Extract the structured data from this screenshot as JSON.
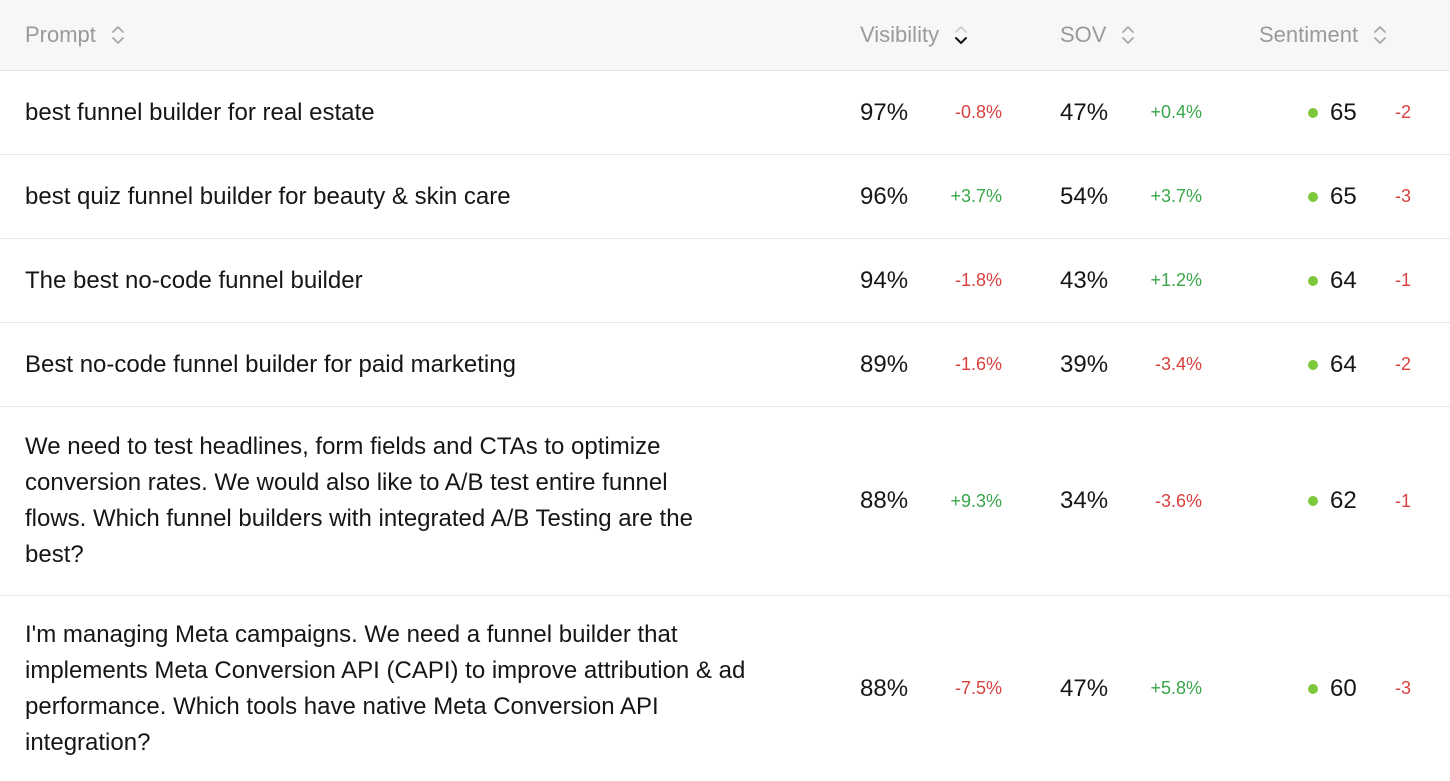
{
  "colors": {
    "header_bg": "#f7f7f7",
    "header_text": "#9a9a9a",
    "positive": "#3aa64a",
    "negative": "#d9413f",
    "sentiment_dot": "#7cc83a"
  },
  "header": {
    "prompt": "Prompt",
    "visibility": "Visibility",
    "sov": "SOV",
    "sentiment": "Sentiment",
    "sorted_column": "visibility"
  },
  "rows": [
    {
      "prompt_lines": [
        "best funnel builder for real estate"
      ],
      "visibility": "97%",
      "visibility_delta": "-0.8%",
      "sov": "47%",
      "sov_delta": "+0.4%",
      "sentiment": "65",
      "sentiment_delta": "-2"
    },
    {
      "prompt_lines": [
        "best quiz funnel builder for beauty & skin care"
      ],
      "visibility": "96%",
      "visibility_delta": "+3.7%",
      "sov": "54%",
      "sov_delta": "+3.7%",
      "sentiment": "65",
      "sentiment_delta": "-3"
    },
    {
      "prompt_lines": [
        "The best no-code funnel builder"
      ],
      "visibility": "94%",
      "visibility_delta": "-1.8%",
      "sov": "43%",
      "sov_delta": "+1.2%",
      "sentiment": "64",
      "sentiment_delta": "-1"
    },
    {
      "prompt_lines": [
        "Best no-code funnel builder for paid marketing"
      ],
      "visibility": "89%",
      "visibility_delta": "-1.6%",
      "sov": "39%",
      "sov_delta": "-3.4%",
      "sentiment": "64",
      "sentiment_delta": "-2"
    },
    {
      "prompt_lines": [
        "We need to test headlines, form fields and CTAs to optimize",
        "conversion rates. We would also like to A/B test entire funnel",
        "flows. Which funnel builders with integrated A/B Testing are the",
        "best?"
      ],
      "visibility": "88%",
      "visibility_delta": "+9.3%",
      "sov": "34%",
      "sov_delta": "-3.6%",
      "sentiment": "62",
      "sentiment_delta": "-1"
    },
    {
      "prompt_lines": [
        "I'm managing Meta campaigns. We need a funnel builder that",
        "implements Meta Conversion API (CAPI) to improve attribution & ad",
        "performance. Which tools have native Meta Conversion API",
        "integration?"
      ],
      "visibility": "88%",
      "visibility_delta": "-7.5%",
      "sov": "47%",
      "sov_delta": "+5.8%",
      "sentiment": "60",
      "sentiment_delta": "-3"
    }
  ]
}
